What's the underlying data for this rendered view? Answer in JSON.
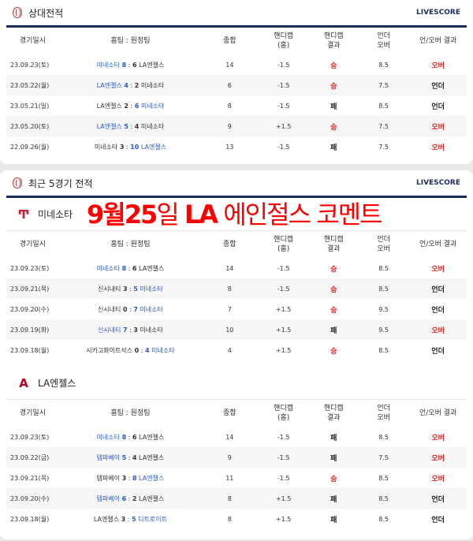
{
  "columns": [
    "경기일시",
    "홈팀 : 원정팀",
    "종합",
    "핸디캡\n(홈)",
    "핸디캡\n결과",
    "언더\n오버",
    "언/오버 결과"
  ],
  "head_to_head": {
    "title": "상대전적",
    "live": "LIVESCORE",
    "rows": [
      {
        "date": "23.09.23(토)",
        "home": "미네소타",
        "hs": "8",
        "as": "6",
        "away": "LA엔젤스",
        "hl": "home",
        "total": "14",
        "hcp": "-1.5",
        "hres": "승",
        "uo": "8.5",
        "uores": "오버"
      },
      {
        "date": "23.05.22(월)",
        "home": "LA엔젤스",
        "hs": "4",
        "as": "2",
        "away": "미네소타",
        "hl": "home",
        "total": "6",
        "hcp": "-1.5",
        "hres": "승",
        "uo": "7.5",
        "uores": "언더"
      },
      {
        "date": "23.05.21(일)",
        "home": "LA엔젤스",
        "hs": "2",
        "as": "6",
        "away": "미네소타",
        "hl": "away",
        "total": "8",
        "hcp": "-1.5",
        "hres": "패",
        "uo": "8.5",
        "uores": "언더"
      },
      {
        "date": "23.05.20(토)",
        "home": "LA엔젤스",
        "hs": "5",
        "as": "4",
        "away": "미네소타",
        "hl": "home",
        "total": "9",
        "hcp": "+1.5",
        "hres": "승",
        "uo": "7.5",
        "uores": "오버"
      },
      {
        "date": "22.09.26(월)",
        "home": "미네소타",
        "hs": "3",
        "as": "10",
        "away": "LA엔젤스",
        "hl": "away",
        "total": "13",
        "hcp": "-1.5",
        "hres": "패",
        "uo": "7.5",
        "uores": "오버"
      }
    ]
  },
  "recent": {
    "title": "최근 5경기 전적",
    "live": "LIVESCORE",
    "teams": [
      {
        "name": "미네소타",
        "logo": "twins-logo-icon",
        "color": "#c0243a",
        "rows": [
          {
            "date": "23.09.23(토)",
            "home": "미네소타",
            "hs": "8",
            "as": "6",
            "away": "LA엔젤스",
            "hl": "home",
            "total": "14",
            "hcp": "-1.5",
            "hres": "승",
            "uo": "8.5",
            "uores": "오버"
          },
          {
            "date": "23.09.21(목)",
            "home": "신시내티",
            "hs": "3",
            "as": "5",
            "away": "미네소타",
            "hl": "away",
            "total": "8",
            "hcp": "-1.5",
            "hres": "승",
            "uo": "8.5",
            "uores": "언더"
          },
          {
            "date": "23.09.20(수)",
            "home": "신시내티",
            "hs": "0",
            "as": "7",
            "away": "미네소타",
            "hl": "away",
            "total": "7",
            "hcp": "+1.5",
            "hres": "승",
            "uo": "9.5",
            "uores": "언더"
          },
          {
            "date": "23.09.19(화)",
            "home": "신시내티",
            "hs": "7",
            "as": "3",
            "away": "미네소타",
            "hl": "home",
            "total": "10",
            "hcp": "+1.5",
            "hres": "패",
            "uo": "9.5",
            "uores": "오버"
          },
          {
            "date": "23.09.18(월)",
            "home": "시카고화이트삭스",
            "hs": "0",
            "as": "4",
            "away": "미네소타",
            "hl": "away",
            "total": "4",
            "hcp": "+1.5",
            "hres": "승",
            "uo": "8.5",
            "uores": "언더"
          }
        ]
      },
      {
        "name": "LA엔젤스",
        "logo": "angels-logo-icon",
        "color": "#ba0021",
        "rows": [
          {
            "date": "23.09.23(토)",
            "home": "미네소타",
            "hs": "8",
            "as": "6",
            "away": "LA엔젤스",
            "hl": "home",
            "total": "14",
            "hcp": "-1.5",
            "hres": "패",
            "uo": "8.5",
            "uores": "오버"
          },
          {
            "date": "23.09.22(금)",
            "home": "탬파베이",
            "hs": "5",
            "as": "4",
            "away": "LA엔젤스",
            "hl": "home",
            "total": "9",
            "hcp": "-1.5",
            "hres": "패",
            "uo": "7.5",
            "uores": "오버"
          },
          {
            "date": "23.09.21(목)",
            "home": "탬파베이",
            "hs": "3",
            "as": "8",
            "away": "LA엔젤스",
            "hl": "away",
            "total": "11",
            "hcp": "-1.5",
            "hres": "승",
            "uo": "8.5",
            "uores": "오버"
          },
          {
            "date": "23.09.20(수)",
            "home": "탬파베이",
            "hs": "6",
            "as": "2",
            "away": "LA엔젤스",
            "hl": "home",
            "total": "8",
            "hcp": "+1.5",
            "hres": "패",
            "uo": "8.5",
            "uores": "언더"
          },
          {
            "date": "23.09.18(월)",
            "home": "LA엔젤스",
            "hs": "3",
            "as": "5",
            "away": "디트로이트",
            "hl": "away",
            "total": "8",
            "hcp": "+1.5",
            "hres": "패",
            "uo": "8.5",
            "uores": "언더"
          }
        ]
      }
    ]
  },
  "overlay": {
    "bold1": "9월25",
    "thin1": "일 ",
    "bold2": "LA",
    "thin2": " 에인절스 코멘트"
  },
  "colors": {
    "accent": "#1a2d5a",
    "red": "#e02020",
    "blue": "#2a5ac8"
  }
}
